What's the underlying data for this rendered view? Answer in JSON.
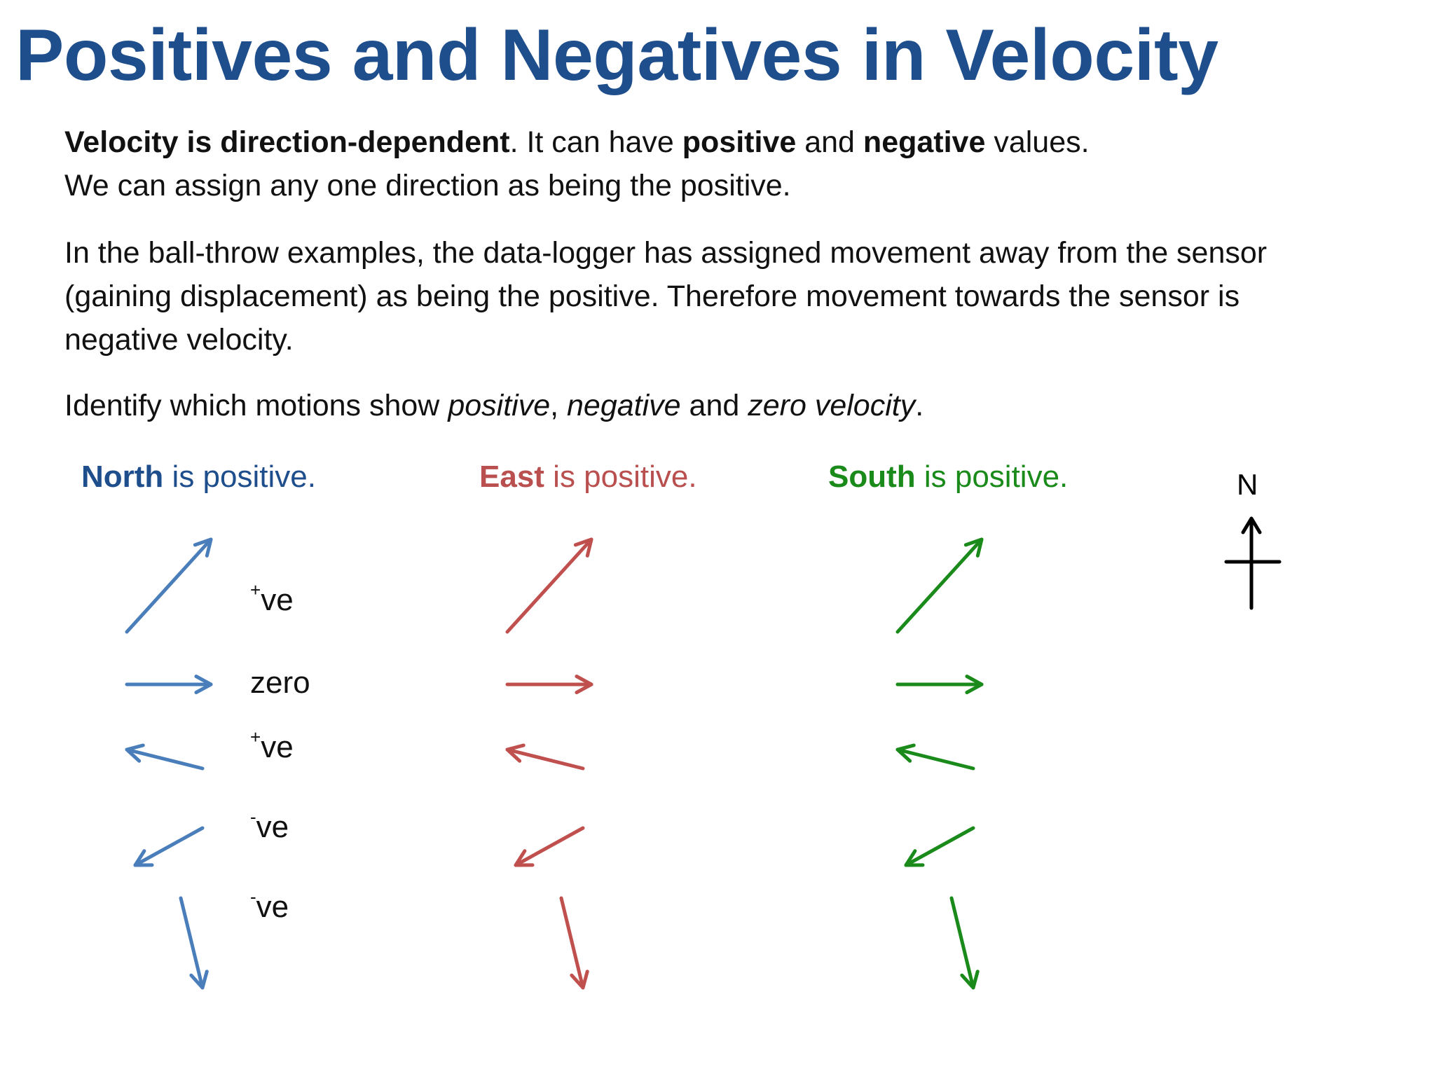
{
  "title": "Positives and Negatives in Velocity",
  "paragraph1": {
    "bold1": "Velocity is direction-dependent",
    "text1": ". It can have ",
    "bold2": "positive",
    "text2": " and ",
    "bold3": "negative",
    "text3": " values.",
    "line2": "We can assign any one direction as being the positive."
  },
  "paragraph2": "In the ball-throw examples, the data-logger has assigned movement away from the sensor (gaining displacement) as being the positive. Therefore movement towards the sensor is negative velocity.",
  "paragraph3": {
    "text1": "Identify which motions show ",
    "italic1": "positive",
    "text2": ", ",
    "italic2": "negative",
    "text3": " and ",
    "italic3": "zero velocity",
    "text4": "."
  },
  "columns": [
    {
      "direction": "North",
      "suffix": " is positive.",
      "color": "#4a7ebb"
    },
    {
      "direction": "East",
      "suffix": " is positive.",
      "color": "#c0504d"
    },
    {
      "direction": "South",
      "suffix": " is positive.",
      "color": "#1a8a1a"
    }
  ],
  "answers": [
    {
      "sign": "+",
      "text": "ve"
    },
    {
      "sign": "",
      "text": "zero"
    },
    {
      "sign": "+",
      "text": "ve"
    },
    {
      "sign": "-",
      "text": "ve"
    },
    {
      "sign": "-",
      "text": "ve"
    }
  ],
  "compass": {
    "label": "N"
  }
}
